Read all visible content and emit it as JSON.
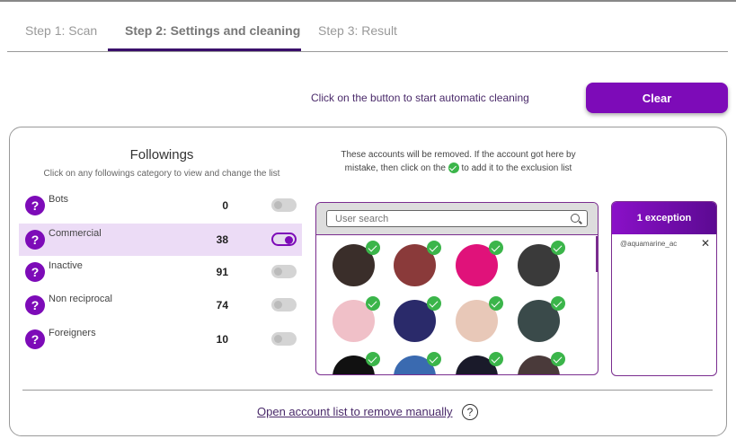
{
  "tabs": [
    {
      "label": "Step 1: Scan"
    },
    {
      "label": "Step 2: Settings and cleaning",
      "active": true
    },
    {
      "label": "Step 3: Result"
    }
  ],
  "action": {
    "hint": "Click on the button to start automatic cleaning",
    "clear_label": "Clear"
  },
  "followings": {
    "title": "Followings",
    "subtitle": "Click on any followings category to view and change the list",
    "categories": [
      {
        "label": "Bots",
        "count": "0",
        "enabled": false
      },
      {
        "label": "Commercial",
        "count": "38",
        "enabled": true,
        "selected": true
      },
      {
        "label": "Inactive",
        "count": "91",
        "enabled": false
      },
      {
        "label": "Non reciprocal",
        "count": "74",
        "enabled": false
      },
      {
        "label": "Foreigners",
        "count": "10",
        "enabled": false
      }
    ]
  },
  "removal": {
    "note_a": "These accounts will be removed. If the account got here by",
    "note_b": "mistake, then click on the",
    "note_c": "to add it to the exclusion list",
    "search_placeholder": "User search",
    "avatar_colors": [
      "#3a2e2a",
      "#8a3a3a",
      "#e0127a",
      "#3a3a3a",
      "#f0c0c8",
      "#2a2a6a",
      "#e8c8b8",
      "#3a4a4a",
      "#111111",
      "#3a6ab0",
      "#1a1a2a",
      "#4a3a3a"
    ]
  },
  "exceptions": {
    "title": "1 exception",
    "items": [
      "@aquamarine_ac"
    ]
  },
  "footer": {
    "link": "Open account list to remove manually",
    "help_icon": "?"
  },
  "colors": {
    "accent": "#7d0bb8",
    "check": "#3bb54a"
  }
}
